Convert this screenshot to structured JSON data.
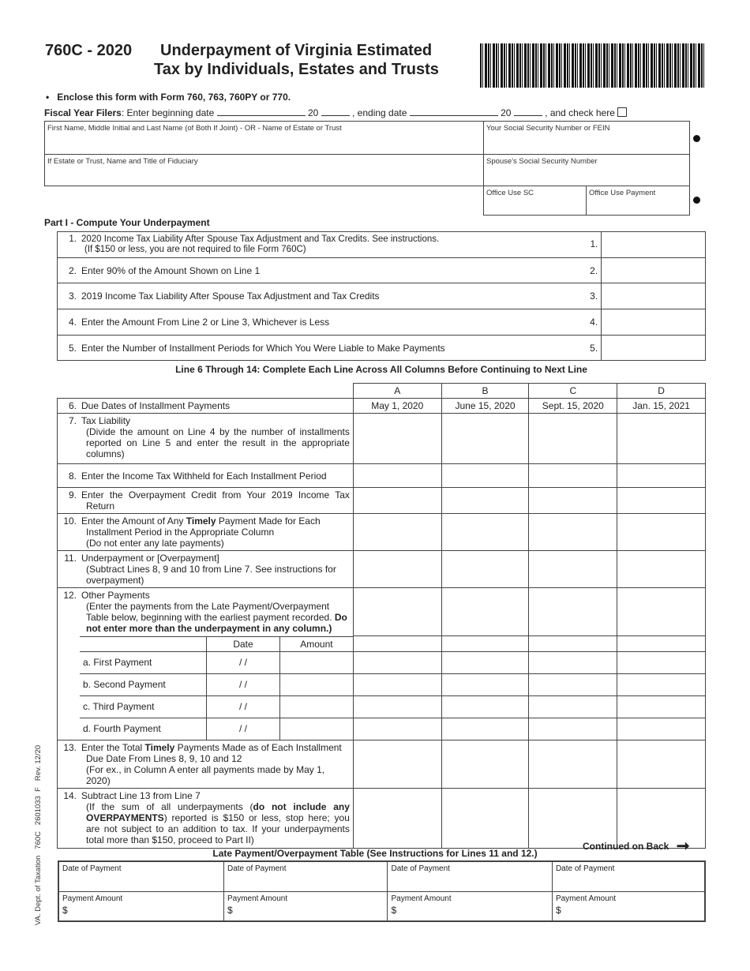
{
  "header": {
    "form_id": "760C - 2020",
    "title_line1": "Underpayment of Virginia Estimated",
    "title_line2": "Tax by Individuals, Estates and Trusts"
  },
  "enclose": "Enclose this form with Form 760, 763, 760PY or 770.",
  "fiscal": {
    "label": "Fiscal Year Filers",
    "begin": ": Enter beginning date",
    "y1": "20",
    "end": ", ending date",
    "y2": "20",
    "check": ", and check here"
  },
  "id_box": {
    "name": "First Name, Middle Initial and Last Name (of Both If Joint) - OR - Name of Estate or Trust",
    "ssn": "Your Social Security Number or FEIN",
    "fiduciary": "If Estate or Trust, Name and Title of Fiduciary",
    "spouse_ssn": "Spouse's Social Security Number",
    "office_sc": "Office Use SC",
    "office_payment": "Office Use Payment"
  },
  "part1": {
    "title": "Part I - Compute Your Underpayment",
    "lines": [
      {
        "n": "1.",
        "text": "2020 Income Tax Liability After Spouse Tax Adjustment and Tax Credits. See instructions.",
        "text2": "(If $150 or less, you are not required to file Form 760C)",
        "ref": "1."
      },
      {
        "n": "2.",
        "text": "Enter 90% of the Amount Shown on Line 1",
        "text2": "",
        "ref": "2."
      },
      {
        "n": "3.",
        "text": "2019 Income Tax Liability After Spouse Tax Adjustment and Tax Credits",
        "text2": "",
        "ref": "3."
      },
      {
        "n": "4.",
        "text": "Enter the Amount From Line 2 or Line 3, Whichever is Less",
        "text2": "",
        "ref": "4."
      },
      {
        "n": "5.",
        "text": "Enter the Number of Installment Periods for Which You Were Liable to Make Payments",
        "text2": "",
        "ref": "5."
      }
    ]
  },
  "grid": {
    "heading": "Line 6 Through 14: Complete Each Line Across All Columns Before Continuing to Next Line",
    "columns": [
      "A",
      "B",
      "C",
      "D"
    ],
    "due_dates": [
      "May 1, 2020",
      "June 15, 2020",
      "Sept. 15, 2020",
      "Jan. 15, 2021"
    ],
    "l6": {
      "n": "6.",
      "text": "Due Dates of Installment Payments"
    },
    "l7": {
      "n": "7.",
      "text": "Tax Liability",
      "text2": "(Divide the amount on Line 4 by the number of installments reported on Line 5 and enter the result in the appropriate columns)"
    },
    "l8": {
      "n": "8.",
      "text": "Enter the Income Tax Withheld for Each Installment Period"
    },
    "l9": {
      "n": "9.",
      "text": "Enter the Overpayment Credit from Your 2019 Income Tax Return"
    },
    "l10": {
      "n": "10.",
      "a": "Enter the Amount of Any ",
      "b": "Timely",
      "c": " Payment Made for Each Installment Period in the Appropriate Column",
      "d": "(Do not enter any late payments)"
    },
    "l11": {
      "n": "11.",
      "text": "Underpayment or [Overpayment]",
      "text2": "(Subtract Lines 8, 9 and 10 from Line 7. See instructions for overpayment)"
    },
    "l12": {
      "n": "12.",
      "text": "Other Payments",
      "a": "(Enter the payments from the Late Payment/Overpayment Table below, beginning with the earliest payment recorded. ",
      "b": "Do not enter more than the underpayment in any column.)",
      "date": "Date",
      "amount": "Amount",
      "slash": "/     /",
      "payments": [
        "a. First Payment",
        "b. Second Payment",
        "c. Third Payment",
        "d. Fourth Payment"
      ]
    },
    "l13": {
      "n": "13.",
      "a": "Enter the Total ",
      "b": "Timely",
      "c": " Payments Made as of Each Installment Due Date From Lines 8, 9, 10 and 12",
      "d": "(For ex., in Column A enter all payments made by May 1, 2020)"
    },
    "l14": {
      "n": "14.",
      "text": "Subtract Line 13 from Line 7",
      "a": "(If the sum of all underpayments (",
      "b": "do not include any OVERPAYMENTS",
      "c": ") reported is $150 or less, stop here; you are not subject to an addition to tax.  If your underpayments total more than $150, proceed to Part II)"
    }
  },
  "continued": "Continued on Back",
  "late_table": {
    "title": "Late Payment/Overpayment Table (See Instructions for Lines 11 and 12.)",
    "date_label": "Date of Payment",
    "amount_label": "Payment Amount",
    "dollar": "$"
  },
  "side_text": "VA. Dept. of Taxation   760C   2601033  F   Rev. 12/20"
}
